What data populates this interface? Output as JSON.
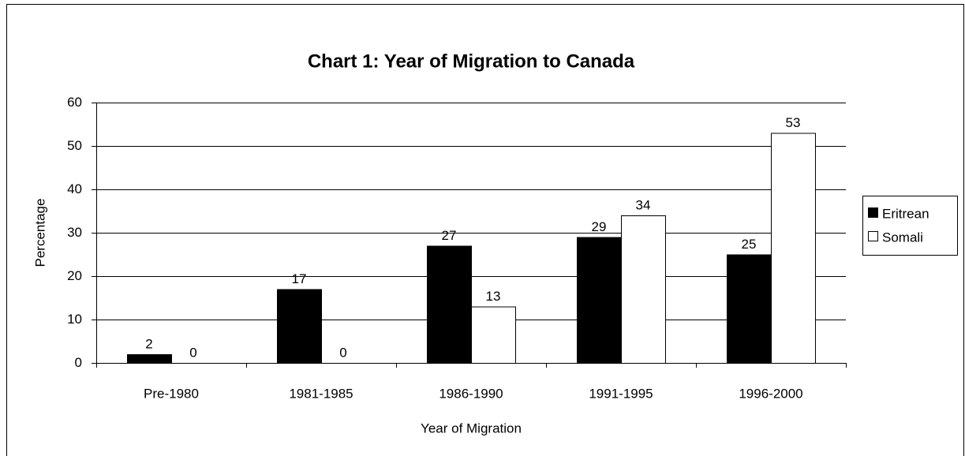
{
  "chart_data": {
    "type": "bar",
    "title": "Chart 1: Year of Migration to Canada",
    "x_label": "Year of Migration",
    "y_label": "Percentage",
    "categories": [
      "Pre-1980",
      "1981-1985",
      "1986-1990",
      "1991-1995",
      "1996-2000"
    ],
    "series": [
      {
        "name": "Eritrean",
        "color": "#000000",
        "values": [
          2,
          17,
          27,
          29,
          25
        ]
      },
      {
        "name": "Somali",
        "color": "#ffffff",
        "values": [
          0,
          0,
          13,
          34,
          53
        ]
      }
    ],
    "ylim": [
      0,
      60
    ],
    "yticks": [
      0,
      10,
      20,
      30,
      40,
      50,
      60
    ],
    "grid": true,
    "legend": "right"
  }
}
